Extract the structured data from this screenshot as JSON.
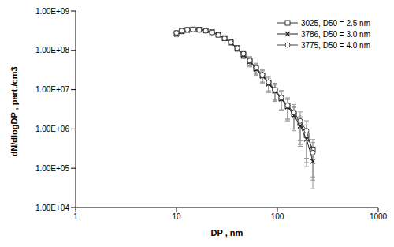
{
  "chart_data": {
    "type": "line",
    "x_label": "DP , nm",
    "y_label": "dN/dlogDP , part./cm3",
    "log": true,
    "grid": false,
    "legend": "upper right",
    "xlim": [
      1,
      1000
    ],
    "xticks": [
      1,
      10,
      100,
      1000
    ],
    "ylim": [
      10000.0,
      1000000000.0
    ],
    "yticks": [
      {
        "value": 10000.0,
        "label": "1.00E+04"
      },
      {
        "value": 100000.0,
        "label": "1.00E+05"
      },
      {
        "value": 1000000.0,
        "label": "1.00E+06"
      },
      {
        "value": 10000000.0,
        "label": "1.00E+07"
      },
      {
        "value": 100000000.0,
        "label": "1.00E+08"
      },
      {
        "value": 1000000000.0,
        "label": "1.00E+09"
      }
    ],
    "x": [
      10,
      11.3,
      12.8,
      14.6,
      16.8,
      19.5,
      22.5,
      26,
      30,
      34.6,
      40,
      46.1,
      53.3,
      61.5,
      71,
      82,
      94.7,
      109.4,
      126.3,
      145.9,
      168.5,
      194.6,
      224.7
    ],
    "series": [
      {
        "name": "3025, D50 = 2.5 nm",
        "color": "#333333",
        "marker": "square",
        "values": [
          270000000.0,
          310000000.0,
          330000000.0,
          340000000.0,
          335000000.0,
          320000000.0,
          290000000.0,
          250000000.0,
          205000000.0,
          160000000.0,
          115000000.0,
          80000000.0,
          54000000.0,
          35000000.0,
          23000000.0,
          15000000.0,
          9500000.0,
          6000000.0,
          3800000.0,
          2400000.0,
          1400000.0,
          700000.0,
          300000.0
        ],
        "errors": [
          40000000.0,
          37000000.0,
          33000000.0,
          27000000.0,
          23000000.0,
          22000000.0,
          20000000.0,
          20000000.0,
          20000000.0,
          19000000.0,
          17000000.0,
          16000000.0,
          13500000.0,
          10500000.0,
          8000000.0,
          6000000.0,
          4300000.0,
          3000000.0,
          2100000.0,
          1400000.0,
          1000000.0,
          560000.0,
          240000.0
        ]
      },
      {
        "name": "3786, D50 = 3.0 nm",
        "color": "#222222",
        "marker": "x",
        "values": [
          260000000.0,
          300000000.0,
          330000000.0,
          340000000.0,
          340000000.0,
          325000000.0,
          295000000.0,
          250000000.0,
          200000000.0,
          155000000.0,
          110000000.0,
          76000000.0,
          51000000.0,
          33000000.0,
          22000000.0,
          14000000.0,
          9000000.0,
          5800000.0,
          3600000.0,
          2200000.0,
          1200000.0,
          550000.0,
          150000.0
        ],
        "errors": [
          39000000.0,
          36000000.0,
          33000000.0,
          27000000.0,
          24000000.0,
          23000000.0,
          21000000.0,
          20000000.0,
          20000000.0,
          19000000.0,
          16500000.0,
          15000000.0,
          13000000.0,
          10000000.0,
          7700000.0,
          5600000.0,
          4000000.0,
          2900000.0,
          2000000.0,
          1300000.0,
          840000.0,
          440000.0,
          120000.0
        ]
      },
      {
        "name": "3775, D50 = 4.0 nm",
        "color": "#444444",
        "marker": "circle",
        "values": [
          280000000.0,
          315000000.0,
          335000000.0,
          340000000.0,
          330000000.0,
          315000000.0,
          285000000.0,
          245000000.0,
          200000000.0,
          160000000.0,
          115000000.0,
          82000000.0,
          55000000.0,
          36000000.0,
          24000000.0,
          15500000.0,
          10000000.0,
          6300000.0,
          4000000.0,
          2600000.0,
          1600000.0,
          900000.0,
          250000.0
        ],
        "errors": [
          42000000.0,
          38000000.0,
          34000000.0,
          27000000.0,
          23000000.0,
          22000000.0,
          20000000.0,
          20000000.0,
          20000000.0,
          19000000.0,
          17000000.0,
          16000000.0,
          14000000.0,
          11000000.0,
          8400000.0,
          6200000.0,
          4500000.0,
          3200000.0,
          2200000.0,
          1600000.0,
          1100000.0,
          720000.0,
          200000.0
        ]
      }
    ]
  }
}
